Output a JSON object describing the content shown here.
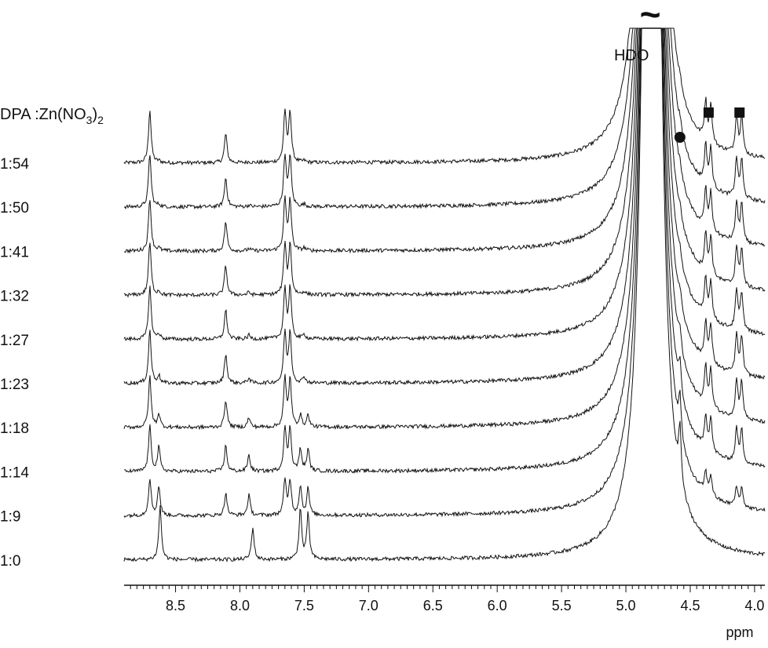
{
  "chart_data": {
    "type": "line",
    "subtype": "stacked-nmr-spectra",
    "x": {
      "label": "ppm",
      "reversed": true,
      "range": [
        8.9,
        3.92
      ],
      "ticks": [
        "8.5",
        "8.0",
        "7.5",
        "7.0",
        "6.5",
        "6.0",
        "5.5",
        "5.0",
        "4.5",
        "4.0"
      ],
      "tick_values": [
        8.5,
        8.0,
        7.5,
        7.0,
        6.5,
        6.0,
        5.5,
        5.0,
        4.5,
        4.0
      ]
    },
    "ratio_header_parts": {
      "main": "DPA :Zn(NO",
      "sub": "3",
      "close": ")",
      "sub2": "2"
    },
    "annotations": {
      "solvent": {
        "label": "HDO",
        "ppm": 4.8,
        "truncated": true,
        "break_symbol": "~"
      },
      "circle_marker_ppm": 4.58,
      "square_marker_ppm": [
        4.36,
        4.12
      ]
    },
    "series": [
      {
        "ratio": "1:54",
        "peaks": [
          [
            8.7,
            1.0
          ],
          [
            8.63,
            0.03
          ],
          [
            8.11,
            0.55
          ],
          [
            7.93,
            0.02
          ],
          [
            7.65,
            0.95
          ],
          [
            7.61,
            0.95
          ],
          [
            7.5,
            0.03
          ],
          [
            4.58,
            0.12
          ],
          [
            4.38,
            0.72
          ],
          [
            4.34,
            0.72
          ],
          [
            4.14,
            0.72
          ],
          [
            4.1,
            0.72
          ]
        ]
      },
      {
        "ratio": "1:50",
        "peaks": [
          [
            8.7,
            1.0
          ],
          [
            8.63,
            0.04
          ],
          [
            8.11,
            0.55
          ],
          [
            7.93,
            0.03
          ],
          [
            7.65,
            0.95
          ],
          [
            7.61,
            0.95
          ],
          [
            7.5,
            0.04
          ],
          [
            4.58,
            0.13
          ],
          [
            4.38,
            0.72
          ],
          [
            4.34,
            0.72
          ],
          [
            4.14,
            0.72
          ],
          [
            4.1,
            0.72
          ]
        ]
      },
      {
        "ratio": "1:41",
        "peaks": [
          [
            8.7,
            1.0
          ],
          [
            8.63,
            0.05
          ],
          [
            8.11,
            0.55
          ],
          [
            7.93,
            0.04
          ],
          [
            7.65,
            0.95
          ],
          [
            7.61,
            0.95
          ],
          [
            7.5,
            0.05
          ],
          [
            4.58,
            0.14
          ],
          [
            4.38,
            0.72
          ],
          [
            4.34,
            0.72
          ],
          [
            4.14,
            0.72
          ],
          [
            4.1,
            0.72
          ]
        ]
      },
      {
        "ratio": "1:32",
        "peaks": [
          [
            8.7,
            1.0
          ],
          [
            8.63,
            0.07
          ],
          [
            8.11,
            0.55
          ],
          [
            7.93,
            0.05
          ],
          [
            7.65,
            0.95
          ],
          [
            7.61,
            0.95
          ],
          [
            7.5,
            0.06
          ],
          [
            4.58,
            0.16
          ],
          [
            4.38,
            0.72
          ],
          [
            4.34,
            0.72
          ],
          [
            4.14,
            0.72
          ],
          [
            4.1,
            0.72
          ]
        ]
      },
      {
        "ratio": "1:27",
        "peaks": [
          [
            8.7,
            1.0
          ],
          [
            8.63,
            0.1
          ],
          [
            8.11,
            0.55
          ],
          [
            7.93,
            0.07
          ],
          [
            7.65,
            0.95
          ],
          [
            7.61,
            0.95
          ],
          [
            7.5,
            0.08
          ],
          [
            4.58,
            0.2
          ],
          [
            4.38,
            0.72
          ],
          [
            4.34,
            0.72
          ],
          [
            4.14,
            0.72
          ],
          [
            4.1,
            0.72
          ]
        ]
      },
      {
        "ratio": "1:23",
        "peaks": [
          [
            8.7,
            1.0
          ],
          [
            8.63,
            0.14
          ],
          [
            8.11,
            0.55
          ],
          [
            7.93,
            0.1
          ],
          [
            7.65,
            0.95
          ],
          [
            7.61,
            0.95
          ],
          [
            7.5,
            0.12
          ],
          [
            4.58,
            0.24
          ],
          [
            4.38,
            0.72
          ],
          [
            4.34,
            0.72
          ],
          [
            4.14,
            0.72
          ],
          [
            4.1,
            0.72
          ]
        ]
      },
      {
        "ratio": "1:18",
        "peaks": [
          [
            8.7,
            0.95
          ],
          [
            8.63,
            0.25
          ],
          [
            8.11,
            0.52
          ],
          [
            7.93,
            0.18
          ],
          [
            7.65,
            0.9
          ],
          [
            7.61,
            0.9
          ],
          [
            7.53,
            0.22
          ],
          [
            7.47,
            0.22
          ],
          [
            4.58,
            0.35
          ],
          [
            4.38,
            0.7
          ],
          [
            4.34,
            0.7
          ],
          [
            4.14,
            0.7
          ],
          [
            4.1,
            0.7
          ]
        ]
      },
      {
        "ratio": "1:14",
        "peaks": [
          [
            8.7,
            0.85
          ],
          [
            8.63,
            0.45
          ],
          [
            8.11,
            0.48
          ],
          [
            7.93,
            0.3
          ],
          [
            7.65,
            0.8
          ],
          [
            7.61,
            0.8
          ],
          [
            7.53,
            0.4
          ],
          [
            7.47,
            0.4
          ],
          [
            4.58,
            0.55
          ],
          [
            4.38,
            0.62
          ],
          [
            4.34,
            0.62
          ],
          [
            4.14,
            0.62
          ],
          [
            4.1,
            0.62
          ]
        ]
      },
      {
        "ratio": "1:9",
        "peaks": [
          [
            8.7,
            0.7
          ],
          [
            8.63,
            0.55
          ],
          [
            8.11,
            0.42
          ],
          [
            7.93,
            0.38
          ],
          [
            7.65,
            0.65
          ],
          [
            7.61,
            0.65
          ],
          [
            7.53,
            0.55
          ],
          [
            7.47,
            0.5
          ],
          [
            4.58,
            0.75
          ],
          [
            4.38,
            0.38
          ],
          [
            4.34,
            0.38
          ],
          [
            4.14,
            0.35
          ],
          [
            4.1,
            0.35
          ]
        ]
      },
      {
        "ratio": "1:0",
        "peaks": [
          [
            8.62,
            1.0
          ],
          [
            7.9,
            0.6
          ],
          [
            7.53,
            0.95
          ],
          [
            7.47,
            0.85
          ],
          [
            4.58,
            1.0
          ]
        ]
      }
    ]
  }
}
